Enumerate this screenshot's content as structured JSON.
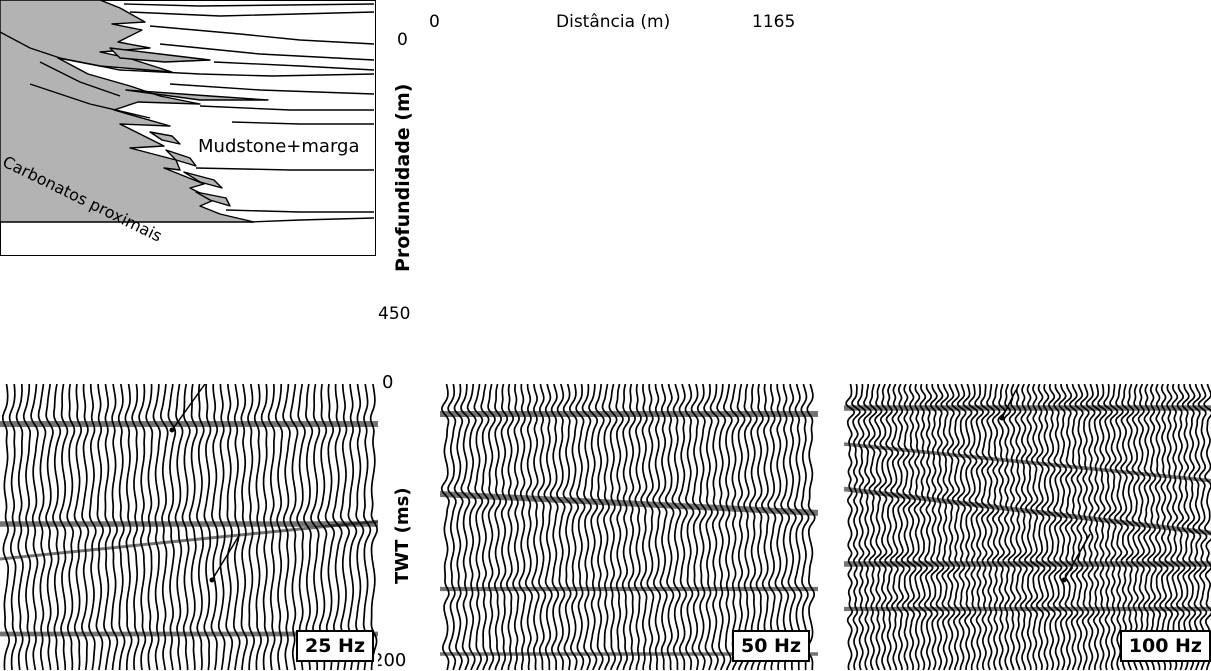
{
  "geo_section": {
    "x_axis_title": "Distância (m)",
    "x_min_label": "0",
    "x_max_label": "1165",
    "y_axis_title": "Profundidade (m)",
    "y_min_label": "0",
    "y_max_label": "450",
    "facies_carbonate": "Carbonatos proximais",
    "facies_mudstone": "Mudstone+marga"
  },
  "seismic": {
    "twt_axis_title": "TWT (ms)",
    "twt_min_label": "0",
    "twt_max_label": "200",
    "panels": [
      {
        "label": "25 Hz",
        "frequency_hz": 25
      },
      {
        "label": "50 Hz",
        "frequency_hz": 50
      },
      {
        "label": "100 Hz",
        "frequency_hz": 100
      }
    ]
  },
  "colors": {
    "carbonate_fill": "#b3b3b3",
    "ink": "#000000",
    "background": "#ffffff"
  }
}
